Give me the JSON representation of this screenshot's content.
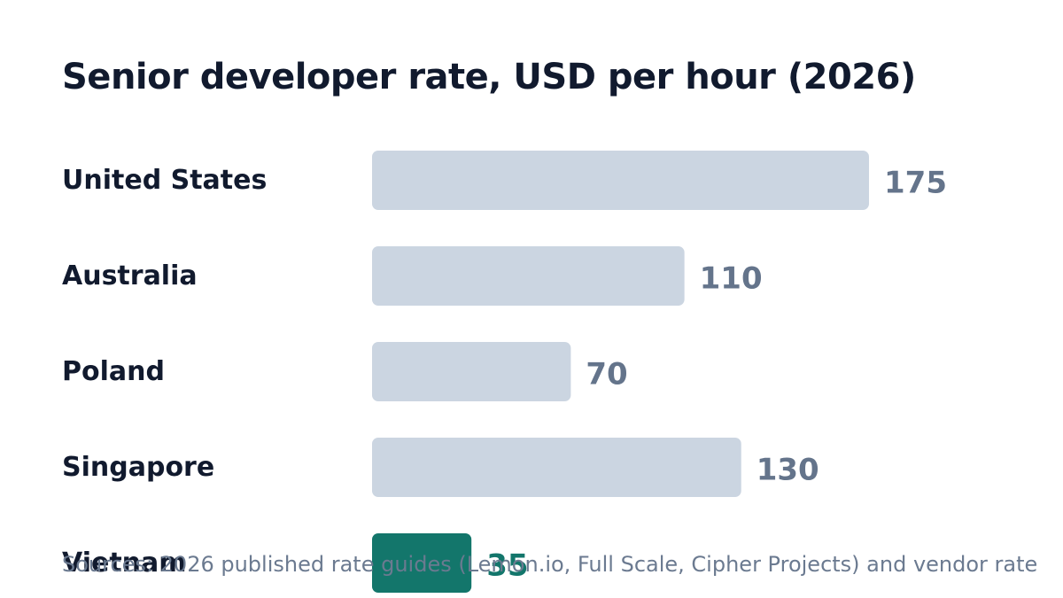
{
  "chart_data": {
    "type": "bar",
    "orientation": "horizontal",
    "title": "Senior developer rate, USD per hour (2026)",
    "categories": [
      "United States",
      "Australia",
      "Poland",
      "Singapore",
      "Vietnam"
    ],
    "values": [
      175,
      110,
      70,
      130,
      35
    ],
    "highlight": "Vietnam",
    "source": "Sources: 2026 published rate guides (Lemon.io, Full Scale, Cipher Projects) and vendor rate",
    "xlim": [
      0,
      175
    ],
    "grid": false,
    "colors": {
      "bar": "#cbd5e1",
      "highlight_bar": "#13766b",
      "value_label": "#64748b",
      "highlight_label": "#13766b"
    }
  }
}
